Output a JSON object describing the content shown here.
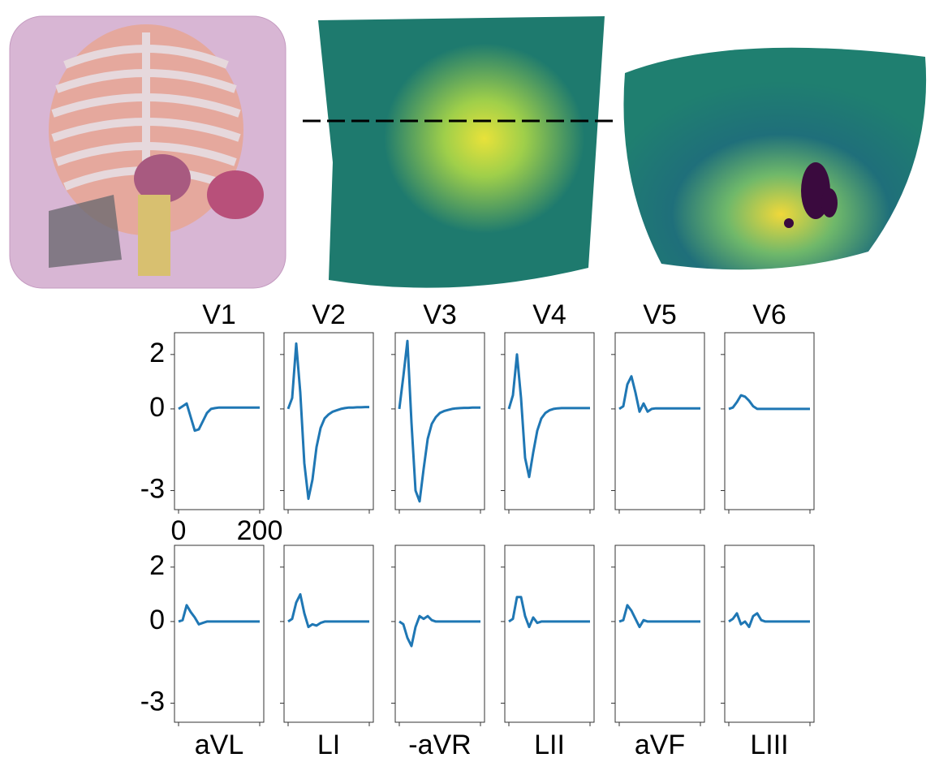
{
  "chart_data": [
    {
      "type": "line",
      "title": "V1",
      "color": "#1f77b4",
      "xlim": [
        -10,
        210
      ],
      "ylim": [
        -3.7,
        2.8
      ],
      "xticks": [
        0,
        200
      ],
      "yticks": [
        2,
        0,
        -3
      ],
      "x": [
        0,
        10,
        20,
        30,
        40,
        50,
        60,
        70,
        80,
        90,
        100,
        110,
        120,
        130,
        140,
        150,
        160,
        170,
        180,
        190,
        200
      ],
      "values": [
        0,
        0.1,
        0.2,
        -0.3,
        -0.8,
        -0.75,
        -0.45,
        -0.15,
        0,
        0.03,
        0.05,
        0.05,
        0.05,
        0.05,
        0.05,
        0.05,
        0.05,
        0.05,
        0.05,
        0.05,
        0.05
      ]
    },
    {
      "type": "line",
      "title": "V2",
      "color": "#1f77b4",
      "xlim": [
        -10,
        210
      ],
      "ylim": [
        -3.7,
        2.8
      ],
      "xticks": [
        0,
        200
      ],
      "yticks": [
        2,
        0,
        -3
      ],
      "x": [
        0,
        10,
        20,
        30,
        40,
        50,
        60,
        70,
        80,
        90,
        100,
        110,
        120,
        130,
        140,
        150,
        160,
        170,
        180,
        190,
        200
      ],
      "values": [
        0,
        0.4,
        2.4,
        0.6,
        -2,
        -3.3,
        -2.6,
        -1.4,
        -0.7,
        -0.35,
        -0.2,
        -0.1,
        -0.05,
        0,
        0.03,
        0.05,
        0.05,
        0.06,
        0.06,
        0.07,
        0.07
      ]
    },
    {
      "type": "line",
      "title": "V3",
      "color": "#1f77b4",
      "xlim": [
        -10,
        210
      ],
      "ylim": [
        -3.7,
        2.8
      ],
      "xticks": [
        0,
        200
      ],
      "yticks": [
        2,
        0,
        -3
      ],
      "x": [
        0,
        10,
        20,
        30,
        40,
        50,
        60,
        70,
        80,
        90,
        100,
        110,
        120,
        130,
        140,
        150,
        160,
        170,
        180,
        190,
        200
      ],
      "values": [
        0,
        1.2,
        2.5,
        -0.5,
        -3,
        -3.4,
        -2.2,
        -1.1,
        -0.55,
        -0.3,
        -0.15,
        -0.08,
        -0.04,
        0,
        0.02,
        0.03,
        0.04,
        0.04,
        0.05,
        0.05,
        0.05
      ]
    },
    {
      "type": "line",
      "title": "V4",
      "color": "#1f77b4",
      "xlim": [
        -10,
        210
      ],
      "ylim": [
        -3.7,
        2.8
      ],
      "xticks": [
        0,
        200
      ],
      "yticks": [
        2,
        0,
        -3
      ],
      "x": [
        0,
        10,
        20,
        30,
        40,
        50,
        60,
        70,
        80,
        90,
        100,
        110,
        120,
        130,
        140,
        150,
        160,
        170,
        180,
        190,
        200
      ],
      "values": [
        0,
        0.5,
        2,
        0.4,
        -1.8,
        -2.5,
        -1.6,
        -0.8,
        -0.35,
        -0.15,
        -0.05,
        0,
        0.02,
        0.03,
        0.03,
        0.03,
        0.03,
        0.03,
        0.03,
        0.03,
        0.03
      ]
    },
    {
      "type": "line",
      "title": "V5",
      "color": "#1f77b4",
      "xlim": [
        -10,
        210
      ],
      "ylim": [
        -3.7,
        2.8
      ],
      "xticks": [
        0,
        200
      ],
      "yticks": [
        2,
        0,
        -3
      ],
      "x": [
        0,
        10,
        20,
        30,
        40,
        50,
        60,
        70,
        80,
        90,
        100,
        110,
        120,
        130,
        140,
        150,
        160,
        170,
        180,
        190,
        200
      ],
      "values": [
        0,
        0.1,
        0.9,
        1.2,
        0.6,
        -0.1,
        0.2,
        -0.1,
        0,
        0.02,
        0.02,
        0.02,
        0.02,
        0.02,
        0.02,
        0.02,
        0.02,
        0.02,
        0.02,
        0.02,
        0.02
      ]
    },
    {
      "type": "line",
      "title": "V6",
      "color": "#1f77b4",
      "xlim": [
        -10,
        210
      ],
      "ylim": [
        -3.7,
        2.8
      ],
      "xticks": [
        0,
        200
      ],
      "yticks": [
        2,
        0,
        -3
      ],
      "x": [
        0,
        10,
        20,
        30,
        40,
        50,
        60,
        70,
        80,
        90,
        100,
        110,
        120,
        130,
        140,
        150,
        160,
        170,
        180,
        190,
        200
      ],
      "values": [
        0,
        0.05,
        0.25,
        0.5,
        0.45,
        0.3,
        0.1,
        0,
        0,
        0,
        0,
        0,
        0,
        0,
        0,
        0,
        0,
        0,
        0,
        0,
        0
      ]
    },
    {
      "type": "line",
      "title": "aVL",
      "color": "#1f77b4",
      "xlim": [
        -10,
        210
      ],
      "ylim": [
        -3.7,
        2.8
      ],
      "xticks": [
        0,
        200
      ],
      "yticks": [
        2,
        0,
        -3
      ],
      "x": [
        0,
        10,
        20,
        30,
        40,
        50,
        60,
        70,
        80,
        90,
        100,
        110,
        120,
        130,
        140,
        150,
        160,
        170,
        180,
        190,
        200
      ],
      "values": [
        0,
        0.05,
        0.6,
        0.35,
        0.15,
        -0.1,
        -0.05,
        0,
        0,
        0,
        0,
        0,
        0,
        0,
        0,
        0,
        0,
        0,
        0,
        0,
        0
      ]
    },
    {
      "type": "line",
      "title": "LI",
      "color": "#1f77b4",
      "xlim": [
        -10,
        210
      ],
      "ylim": [
        -3.7,
        2.8
      ],
      "xticks": [
        0,
        200
      ],
      "yticks": [
        2,
        0,
        -3
      ],
      "x": [
        0,
        10,
        20,
        30,
        40,
        50,
        60,
        70,
        80,
        90,
        100,
        110,
        120,
        130,
        140,
        150,
        160,
        170,
        180,
        190,
        200
      ],
      "values": [
        0,
        0.1,
        0.7,
        1,
        0.3,
        -0.2,
        -0.1,
        -0.15,
        -0.05,
        0,
        0,
        0,
        0,
        0,
        0,
        0,
        0,
        0,
        0,
        0,
        0
      ]
    },
    {
      "type": "line",
      "title": "-aVR",
      "color": "#1f77b4",
      "xlim": [
        -10,
        210
      ],
      "ylim": [
        -3.7,
        2.8
      ],
      "xticks": [
        0,
        200
      ],
      "yticks": [
        2,
        0,
        -3
      ],
      "x": [
        0,
        10,
        20,
        30,
        40,
        50,
        60,
        70,
        80,
        90,
        100,
        110,
        120,
        130,
        140,
        150,
        160,
        170,
        180,
        190,
        200
      ],
      "values": [
        0,
        -0.1,
        -0.6,
        -0.9,
        -0.2,
        0.2,
        0.1,
        0.2,
        0.05,
        0,
        0,
        0,
        0,
        0,
        0,
        0,
        0,
        0,
        0,
        0,
        0
      ]
    },
    {
      "type": "line",
      "title": "LII",
      "color": "#1f77b4",
      "xlim": [
        -10,
        210
      ],
      "ylim": [
        -3.7,
        2.8
      ],
      "xticks": [
        0,
        200
      ],
      "yticks": [
        2,
        0,
        -3
      ],
      "x": [
        0,
        10,
        20,
        30,
        40,
        50,
        60,
        70,
        80,
        90,
        100,
        110,
        120,
        130,
        140,
        150,
        160,
        170,
        180,
        190,
        200
      ],
      "values": [
        0,
        0.1,
        0.9,
        0.9,
        0.2,
        -0.2,
        0.15,
        -0.05,
        0,
        0,
        0,
        0,
        0,
        0,
        0,
        0,
        0,
        0,
        0,
        0,
        0
      ]
    },
    {
      "type": "line",
      "title": "aVF",
      "color": "#1f77b4",
      "xlim": [
        -10,
        210
      ],
      "ylim": [
        -3.7,
        2.8
      ],
      "xticks": [
        0,
        200
      ],
      "yticks": [
        2,
        0,
        -3
      ],
      "x": [
        0,
        10,
        20,
        30,
        40,
        50,
        60,
        70,
        80,
        90,
        100,
        110,
        120,
        130,
        140,
        150,
        160,
        170,
        180,
        190,
        200
      ],
      "values": [
        0,
        0.05,
        0.6,
        0.4,
        0.1,
        -0.2,
        0.05,
        0,
        0,
        0,
        0,
        0,
        0,
        0,
        0,
        0,
        0,
        0,
        0,
        0,
        0
      ]
    },
    {
      "type": "line",
      "title": "LIII",
      "color": "#1f77b4",
      "xlim": [
        -10,
        210
      ],
      "ylim": [
        -3.7,
        2.8
      ],
      "xticks": [
        0,
        200
      ],
      "yticks": [
        2,
        0,
        -3
      ],
      "x": [
        0,
        10,
        20,
        30,
        40,
        50,
        60,
        70,
        80,
        90,
        100,
        110,
        120,
        130,
        140,
        150,
        160,
        170,
        180,
        190,
        200
      ],
      "values": [
        0,
        0.1,
        0.3,
        -0.1,
        0,
        -0.2,
        0.2,
        0.3,
        0.05,
        0,
        0,
        0,
        0,
        0,
        0,
        0,
        0,
        0,
        0,
        0,
        0
      ]
    }
  ]
}
